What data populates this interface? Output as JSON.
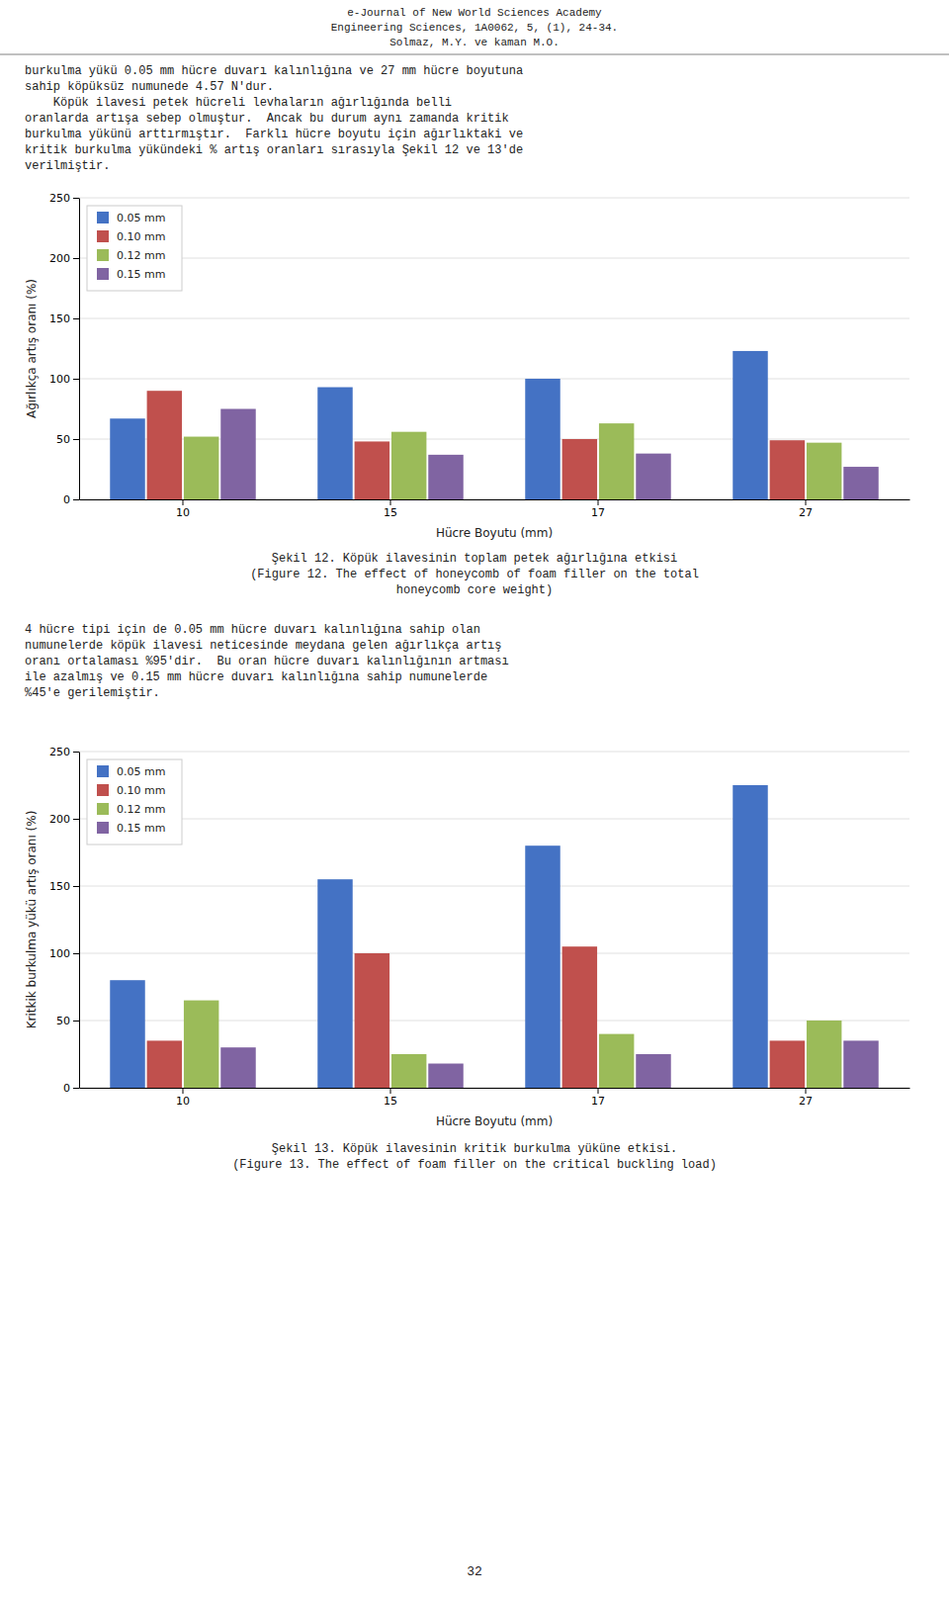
{
  "header_text": "e-Journal of New World Sciences Academy\nEngineering Sciences, 1A0062, 5, (1), 24-34.\nSolmaz, M.Y. ve kaman M.O.",
  "intro_text": "burkulma yükü 0.05 mm hücre duvarı kalınlığına ve 27 mm hücre boyutuna\nsahip köpüksüz numunede 4.57 N'dur.\n    Köpük ilavesi petek hücreli levhaların ağırlığında belli\noranlarda artışa sebep olmuştur.  Ancak bu durum aynı zamanda kritik\nburkulma yükünü arttırmıştır.  Farklı hücre boyutu için ağırlıktaki ve\nkritik burkulma yükündeki % artış oranları sırasıyla Şekil 12 ve 13'de\nverilmiştir.",
  "caption1": [
    "Şekil 12. Köpük ilavesinin toplam petek ağırlığına etkisi",
    "(Figure 12. The effect of honeycomb of foam filler on the total",
    "honeycomb core weight)"
  ],
  "body_text": "4 hücre tipi için de 0.05 mm hücre duvarı kalınlığına sahip olan\nnumunelerde köpük ilavesi neticesinde meydana gelen ağırlıkça artış\noranı ortalaması %95'dir.  Bu oran hücre duvarı kalınlığının artması\nile azalmış ve 0.15 mm hücre duvarı kalınlığına sahip numunelerde\n%45'e gerilemiştir.",
  "caption2": [
    "Şekil 13. Köpük ilavesinin kritik burkulma yüküne etkisi.",
    "(Figure 13. The effect of foam filler on the critical buckling load)"
  ],
  "page_number": "32",
  "chart_data": [
    {
      "type": "bar",
      "xlabel": "Hücre Boyutu (mm)",
      "ylabel": "Ağırlıkça artış oranı (%)",
      "categories": [
        "10",
        "15",
        "17",
        "27"
      ],
      "series": [
        {
          "name": "0.05 mm",
          "color": "#4472C4",
          "values": [
            67,
            93,
            100,
            123
          ]
        },
        {
          "name": "0.10 mm",
          "color": "#C0504D",
          "values": [
            90,
            48,
            50,
            49
          ]
        },
        {
          "name": "0.12 mm",
          "color": "#9BBB59",
          "values": [
            52,
            56,
            63,
            47
          ]
        },
        {
          "name": "0.15 mm",
          "color": "#8064A2",
          "values": [
            75,
            37,
            38,
            27
          ]
        }
      ],
      "ylim": [
        0,
        250
      ],
      "yticks": [
        0,
        50,
        100,
        150,
        200,
        250
      ],
      "grid": true,
      "legend": "upper left"
    },
    {
      "type": "bar",
      "xlabel": "Hücre Boyutu (mm)",
      "ylabel": "Kritkik burkulma yükü artış oranı (%)",
      "categories": [
        "10",
        "15",
        "17",
        "27"
      ],
      "series": [
        {
          "name": "0.05 mm",
          "color": "#4472C4",
          "values": [
            80,
            155,
            180,
            225
          ]
        },
        {
          "name": "0.10 mm",
          "color": "#C0504D",
          "values": [
            35,
            100,
            105,
            35
          ]
        },
        {
          "name": "0.12 mm",
          "color": "#9BBB59",
          "values": [
            65,
            25,
            40,
            50
          ]
        },
        {
          "name": "0.15 mm",
          "color": "#8064A2",
          "values": [
            30,
            18,
            25,
            35
          ]
        }
      ],
      "ylim": [
        0,
        250
      ],
      "yticks": [
        0,
        50,
        100,
        150,
        200,
        250
      ],
      "grid": true,
      "legend": "upper left"
    }
  ]
}
